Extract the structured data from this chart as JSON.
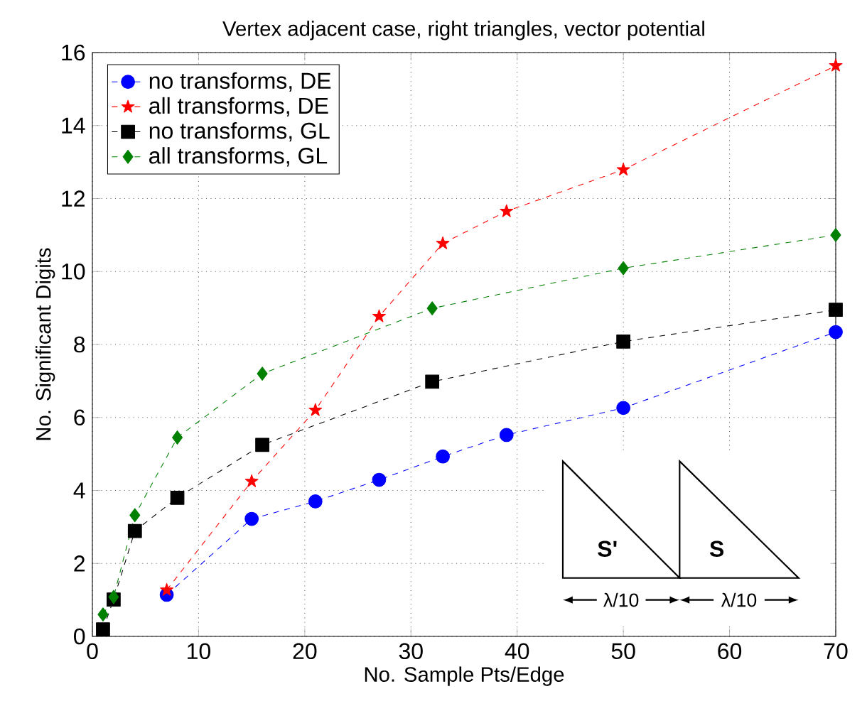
{
  "chart_data": {
    "type": "line",
    "title": "Vertex adjacent case, right triangles, vector potential",
    "xlabel": "No. Sample Pts/Edge",
    "ylabel": "No. Significant Digits",
    "xlim": [
      0,
      70
    ],
    "ylim": [
      0,
      16
    ],
    "xticks": [
      0,
      10,
      20,
      30,
      40,
      50,
      60,
      70
    ],
    "yticks": [
      0,
      2,
      4,
      6,
      8,
      10,
      12,
      14,
      16
    ],
    "grid": true,
    "legend": "top left",
    "line_style": "dashed",
    "series": [
      {
        "name": "no transforms, DE",
        "color": "#0000ff",
        "marker": "circle",
        "x": [
          7,
          15,
          21,
          27,
          33,
          39,
          50,
          70
        ],
        "values": [
          1.14,
          3.22,
          3.7,
          4.29,
          4.93,
          5.52,
          6.26,
          8.34
        ]
      },
      {
        "name": "all transforms, DE",
        "color": "#ff0000",
        "marker": "star",
        "x": [
          7,
          15,
          21,
          27,
          33,
          39,
          50,
          70
        ],
        "values": [
          1.27,
          4.25,
          6.2,
          8.77,
          10.77,
          11.65,
          12.79,
          15.64
        ]
      },
      {
        "name": "no transforms, GL",
        "color": "#000000",
        "marker": "square",
        "x": [
          1,
          2,
          4,
          8,
          16,
          32,
          50,
          70
        ],
        "values": [
          0.19,
          1.01,
          2.89,
          3.8,
          5.25,
          6.98,
          8.08,
          8.95
        ]
      },
      {
        "name": "all transforms, GL",
        "color": "#008000",
        "marker": "diamond",
        "x": [
          1,
          2,
          4,
          8,
          16,
          32,
          50,
          70
        ],
        "values": [
          0.6,
          1.08,
          3.32,
          5.45,
          7.2,
          8.99,
          10.09,
          11.0
        ]
      }
    ],
    "annotations": [
      "S'",
      "S",
      "λ/10",
      "λ/10"
    ]
  }
}
